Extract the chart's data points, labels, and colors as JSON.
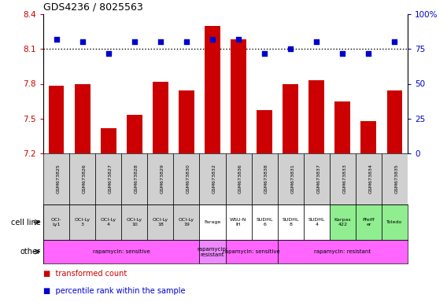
{
  "title": "GDS4236 / 8025563",
  "samples": [
    "GSM673825",
    "GSM673826",
    "GSM673827",
    "GSM673828",
    "GSM673829",
    "GSM673830",
    "GSM673832",
    "GSM673836",
    "GSM673838",
    "GSM673831",
    "GSM673837",
    "GSM673833",
    "GSM673834",
    "GSM673835"
  ],
  "bar_values": [
    7.78,
    7.8,
    7.42,
    7.53,
    7.82,
    7.74,
    8.3,
    8.18,
    7.57,
    7.8,
    7.83,
    7.65,
    7.48,
    7.74
  ],
  "dot_values": [
    82,
    80,
    72,
    80,
    80,
    80,
    82,
    82,
    72,
    75,
    80,
    72,
    72,
    80
  ],
  "ymin": 7.2,
  "ymax": 8.4,
  "y2min": 0,
  "y2max": 100,
  "yticks": [
    7.2,
    7.5,
    7.8,
    8.1,
    8.4
  ],
  "y2ticks": [
    0,
    25,
    50,
    75,
    100
  ],
  "bar_color": "#cc0000",
  "dot_color": "#0000cc",
  "dotted_line_y": 8.1,
  "cell_line_labels": [
    "OCI-\nLy1",
    "OCI-Ly\n3",
    "OCI-Ly\n4",
    "OCI-Ly\n10",
    "OCI-Ly\n18",
    "OCI-Ly\n19",
    "Farage",
    "WSU-N\nIH",
    "SUDHL\n6",
    "SUDHL\n8",
    "SUDHL\n4",
    "Karpas\n422",
    "Pfeiff\ner",
    "Toledo"
  ],
  "cell_line_bg": [
    "#d0d0d0",
    "#d0d0d0",
    "#d0d0d0",
    "#d0d0d0",
    "#d0d0d0",
    "#d0d0d0",
    "#ffffff",
    "#ffffff",
    "#ffffff",
    "#ffffff",
    "#ffffff",
    "#90ee90",
    "#90ee90",
    "#90ee90"
  ],
  "other_groups": [
    {
      "label": "rapamycin: sensitive",
      "start": 0,
      "end": 6,
      "color": "#ff66ff"
    },
    {
      "label": "rapamycin:\nresistant",
      "start": 6,
      "end": 7,
      "color": "#ee88ff"
    },
    {
      "label": "rapamycin: sensitive",
      "start": 7,
      "end": 9,
      "color": "#ff66ff"
    },
    {
      "label": "rapamycin: resistant",
      "start": 9,
      "end": 14,
      "color": "#ff66ff"
    }
  ],
  "background_color": "#ffffff"
}
